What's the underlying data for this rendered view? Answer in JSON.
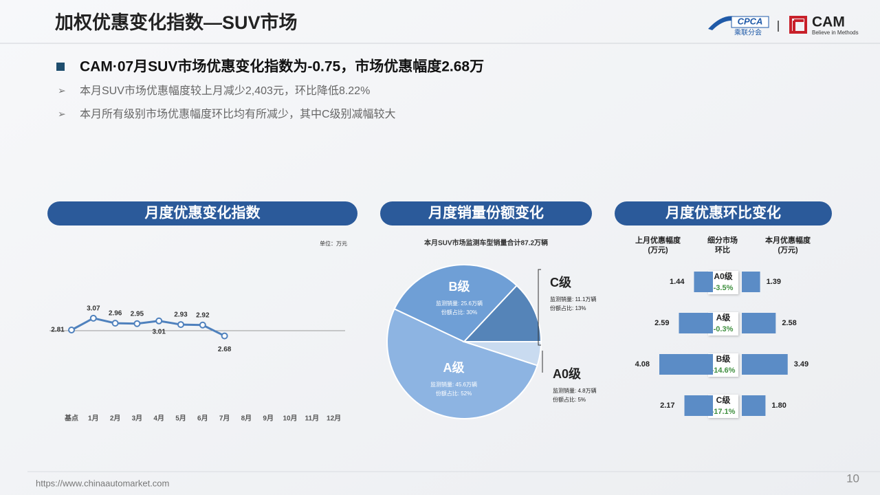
{
  "header": {
    "title": "加权优惠变化指数—SUV市场",
    "logos": [
      "CPCA",
      "乘联分会",
      "CAM",
      "Believe in Methods"
    ]
  },
  "headline": "CAM·07月SUV市场优惠变化指数为-0.75，市场优惠幅度2.68万",
  "bullets": [
    "本月SUV市场优惠幅度较上月减少2,403元，环比降低8.22%",
    "本月所有级别市场优惠幅度环比均有所减少，其中C级别减幅较大"
  ],
  "footer": {
    "url": "https://www.chinaautomarket.com",
    "page": "10"
  },
  "chart_data": [
    {
      "type": "line",
      "title": "月度优惠变化指数",
      "unit": "单位：万元",
      "categories": [
        "基点",
        "1月",
        "2月",
        "3月",
        "4月",
        "5月",
        "6月",
        "7月",
        "8月",
        "9月",
        "10月",
        "11月",
        "12月"
      ],
      "values": [
        2.81,
        3.07,
        2.96,
        2.95,
        3.01,
        2.93,
        2.92,
        2.68,
        null,
        null,
        null,
        null,
        null
      ],
      "color": "#4f81bd"
    },
    {
      "type": "pie",
      "title": "月度销量份额变化",
      "subtitle": "本月SUV市场监测车型销量合计87.2万辆",
      "categories": [
        "A0级",
        "A级",
        "B级",
        "C级"
      ],
      "values": [
        5,
        52,
        30,
        13
      ],
      "value_labels": [
        "份额占比: 5%",
        "份额占比: 52%",
        "份额占比: 30%",
        "份额占比: 13%"
      ],
      "volume_labels": [
        "监测销量: 4.8万辆",
        "监测销量: 45.6万辆",
        "监测销量: 25.6万辆",
        "监测销量: 11.1万辆"
      ],
      "colors": [
        "#c9dbf0",
        "#8db4e2",
        "#6f9fd6",
        "#5584b8"
      ]
    },
    {
      "type": "bar",
      "title": "月度优惠环比变化",
      "headers": [
        [
          "上月优惠幅度",
          "(万元)"
        ],
        [
          "细分市场",
          "环比"
        ],
        [
          "本月优惠幅度",
          "(万元)"
        ]
      ],
      "categories": [
        "A0级",
        "A级",
        "B级",
        "C级"
      ],
      "series": [
        {
          "color": "#5b8cc6",
          "values": [
            1.44,
            2.59,
            4.08,
            2.17
          ]
        },
        {
          "color": "#5b8cc6",
          "values": [
            1.39,
            2.58,
            3.49,
            1.8
          ],
          "value_labels": [
            "1.39",
            "2.58",
            "3.49",
            "1.80"
          ]
        }
      ],
      "change": {
        "color": "#3f8f3f",
        "values": [
          -3.5,
          -0.3,
          -14.6,
          -17.1
        ],
        "value_labels": [
          "-3.5%",
          "-0.3%",
          "-14.6%",
          "-17.1%"
        ]
      }
    }
  ]
}
